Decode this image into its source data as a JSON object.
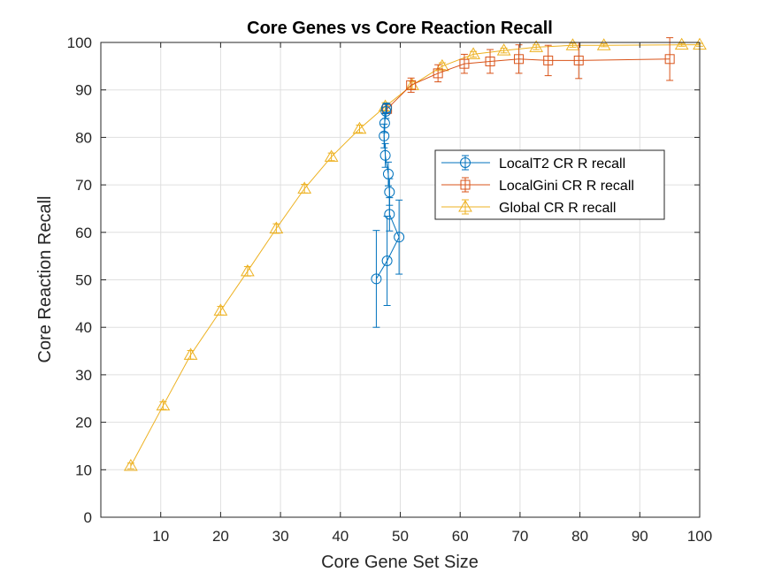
{
  "chart_data": {
    "type": "line",
    "title": "Core Genes vs Core Reaction Recall",
    "xlabel": "Core Gene Set Size",
    "ylabel": "Core Reaction Recall",
    "xlim": [
      0,
      100
    ],
    "ylim": [
      0,
      100
    ],
    "xticks": [
      10,
      20,
      30,
      40,
      50,
      60,
      70,
      80,
      90,
      100
    ],
    "yticks": [
      0,
      10,
      20,
      30,
      40,
      50,
      60,
      70,
      80,
      90,
      100
    ],
    "grid": true,
    "legend_position": "right-middle",
    "series": [
      {
        "name": "LocalT2 CR R recall",
        "color": "#0072BD",
        "marker": "circle",
        "points": [
          {
            "x": 46.0,
            "y": 50.2,
            "err": 10.2
          },
          {
            "x": 47.8,
            "y": 54.0,
            "err": 9.4
          },
          {
            "x": 49.8,
            "y": 59.0,
            "err": 7.8
          },
          {
            "x": 48.2,
            "y": 63.8,
            "err": 3.5
          },
          {
            "x": 48.2,
            "y": 68.5,
            "err": 2.8
          },
          {
            "x": 48.0,
            "y": 72.3,
            "err": 2.5
          },
          {
            "x": 47.5,
            "y": 76.2,
            "err": 2.5
          },
          {
            "x": 47.3,
            "y": 80.3,
            "err": 2.5
          },
          {
            "x": 47.4,
            "y": 83.0,
            "err": 2.0
          },
          {
            "x": 47.6,
            "y": 85.5,
            "err": 1.5
          },
          {
            "x": 47.7,
            "y": 86.2,
            "err": 1.0
          }
        ]
      },
      {
        "name": "LocalGini CR R recall",
        "color": "#D95319",
        "marker": "square",
        "points": [
          {
            "x": 47.8,
            "y": 86.0,
            "err": 1.0
          },
          {
            "x": 51.8,
            "y": 91.0,
            "err": 1.5
          },
          {
            "x": 56.3,
            "y": 93.5,
            "err": 1.8
          },
          {
            "x": 60.7,
            "y": 95.5,
            "err": 2.0
          },
          {
            "x": 65.0,
            "y": 96.0,
            "err": 2.5
          },
          {
            "x": 69.8,
            "y": 96.5,
            "err": 3.0
          },
          {
            "x": 74.7,
            "y": 96.2,
            "err": 3.2
          },
          {
            "x": 79.8,
            "y": 96.2,
            "err": 3.8
          },
          {
            "x": 95.0,
            "y": 96.5,
            "err": 4.5
          }
        ]
      },
      {
        "name": "Global CR R recall",
        "color": "#EDB120",
        "marker": "triangle",
        "points": [
          {
            "x": 5.0,
            "y": 10.8,
            "err": 0.6
          },
          {
            "x": 10.4,
            "y": 23.5,
            "err": 0.8
          },
          {
            "x": 15.0,
            "y": 34.2,
            "err": 0.9
          },
          {
            "x": 20.0,
            "y": 43.5,
            "err": 0.9
          },
          {
            "x": 24.5,
            "y": 51.8,
            "err": 1.0
          },
          {
            "x": 29.3,
            "y": 60.8,
            "err": 1.0
          },
          {
            "x": 34.0,
            "y": 69.2,
            "err": 0.9
          },
          {
            "x": 38.5,
            "y": 75.9,
            "err": 0.8
          },
          {
            "x": 43.2,
            "y": 81.8,
            "err": 0.8
          },
          {
            "x": 47.5,
            "y": 86.5,
            "err": 0.8
          },
          {
            "x": 52.0,
            "y": 91.0,
            "err": 0.8
          },
          {
            "x": 57.0,
            "y": 95.0,
            "err": 0.7
          },
          {
            "x": 62.2,
            "y": 97.5,
            "err": 0.6
          },
          {
            "x": 67.3,
            "y": 98.3,
            "err": 0.5
          },
          {
            "x": 72.7,
            "y": 99.0,
            "err": 0.5
          },
          {
            "x": 78.8,
            "y": 99.4,
            "err": 0.4
          },
          {
            "x": 84.0,
            "y": 99.4,
            "err": 0.3
          },
          {
            "x": 97.0,
            "y": 99.5,
            "err": 0.3
          },
          {
            "x": 100.0,
            "y": 99.5,
            "err": 0.3
          }
        ]
      }
    ]
  }
}
